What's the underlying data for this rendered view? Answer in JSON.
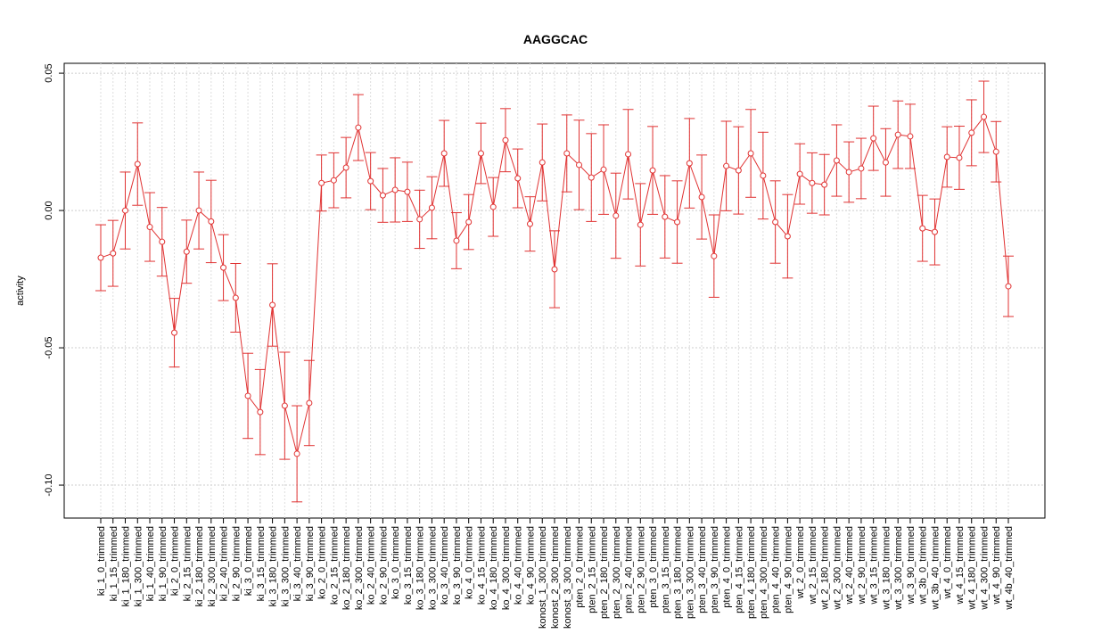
{
  "chart_data": {
    "type": "line",
    "title": "AAGGCAC",
    "y_label": "activity",
    "categories": [
      "ki_1_0_trimmed",
      "ki_1_15_trimmed",
      "ki_1_180_trimmed",
      "ki_1_300_trimmed",
      "ki_1_40_trimmed",
      "ki_1_90_trimmed",
      "ki_2_0_trimmed",
      "ki_2_15_trimmed",
      "ki_2_180_trimmed",
      "ki_2_300_trimmed",
      "ki_2_40_trimmed",
      "ki_2_90_trimmed",
      "ki_3_0_trimmed",
      "ki_3_15_trimmed",
      "ki_3_180_trimmed",
      "ki_3_300_trimmed",
      "ki_3_40_trimmed",
      "ki_3_90_trimmed",
      "ko_2_0_trimmed",
      "ko_2_15_trimmed",
      "ko_2_180_trimmed",
      "ko_2_300_trimmed",
      "ko_2_40_trimmed",
      "ko_2_90_trimmed",
      "ko_3_0_trimmed",
      "ko_3_15_trimmed",
      "ko_3_180_trimmed",
      "ko_3_300_trimmed",
      "ko_3_40_trimmed",
      "ko_3_90_trimmed",
      "ko_4_0_trimmed",
      "ko_4_15_trimmed",
      "ko_4_180_trimmed",
      "ko_4_300_trimmed",
      "ko_4_40_trimmed",
      "ko_4_90_trimmed",
      "konost_1_300_trimmed",
      "konost_2_300_trimmed",
      "konost_3_300_trimmed",
      "pten_2_0_trimmed",
      "pten_2_15_trimmed",
      "pten_2_180_trimmed",
      "pten_2_300_trimmed",
      "pten_2_40_trimmed",
      "pten_2_90_trimmed",
      "pten_3_0_trimmed",
      "pten_3_15_trimmed",
      "pten_3_180_trimmed",
      "pten_3_300_trimmed",
      "pten_3_40_trimmed",
      "pten_3_90_trimmed",
      "pten_4_0_trimmed",
      "pten_4_15_trimmed",
      "pten_4_180_trimmed",
      "pten_4_300_trimmed",
      "pten_4_40_trimmed",
      "pten_4_90_trimmed",
      "wt_2_0_trimmed",
      "wt_2_15_trimmed",
      "wt_2_180_trimmed",
      "wt_2_300_trimmed",
      "wt_2_40_trimmed",
      "wt_2_90_trimmed",
      "wt_3_15_trimmed",
      "wt_3_180_trimmed",
      "wt_3_300_trimmed",
      "wt_3_90_trimmed",
      "wt_3b_0_trimmed",
      "wt_3b_40_trimmed",
      "wt_4_0_trimmed",
      "wt_4_15_trimmed",
      "wt_4_180_trimmed",
      "wt_4_300_trimmed",
      "wt_4_90_trimmed",
      "wt_4b_40_trimmed"
    ],
    "values": [
      -0.0172,
      -0.0156,
      0,
      0.0169,
      -0.006,
      -0.0114,
      -0.0445,
      -0.015,
      0,
      -0.004,
      -0.0208,
      -0.0318,
      -0.0675,
      -0.0734,
      -0.0344,
      -0.0711,
      -0.0886,
      -0.0701,
      0.01,
      0.011,
      0.0156,
      0.0302,
      0.0107,
      0.0055,
      0.0075,
      0.0068,
      -0.0032,
      0.001,
      0.0208,
      -0.011,
      -0.0042,
      0.0208,
      0.0013,
      0.0256,
      0.0117,
      -0.0049,
      0.0175,
      -0.0214,
      0.0208,
      0.0166,
      0.012,
      0.0149,
      -0.0019,
      0.0205,
      -0.0052,
      0.0146,
      -0.0023,
      -0.0042,
      0.0172,
      0.0049,
      -0.0166,
      0.0162,
      0.0146,
      0.0208,
      0.0127,
      -0.0042,
      -0.0094,
      0.0133,
      0.01,
      0.0094,
      0.0182,
      0.014,
      0.0153,
      0.0263,
      0.0175,
      0.0276,
      0.027,
      -0.0065,
      -0.0078,
      0.0195,
      0.0192,
      0.0283,
      0.0341,
      0.0214,
      -0.0276
    ],
    "errors": [
      0.012,
      0.012,
      0.014,
      0.015,
      0.0125,
      0.0125,
      0.0125,
      0.0115,
      0.014,
      0.015,
      0.012,
      0.0125,
      0.0155,
      0.0155,
      0.015,
      0.0195,
      0.0175,
      0.0155,
      0.0102,
      0.01,
      0.011,
      0.012,
      0.0104,
      0.0098,
      0.0117,
      0.0108,
      0.0106,
      0.0113,
      0.012,
      0.0102,
      0.01,
      0.011,
      0.0107,
      0.0115,
      0.0107,
      0.0099,
      0.014,
      0.014,
      0.014,
      0.0163,
      0.016,
      0.0163,
      0.0155,
      0.0163,
      0.015,
      0.016,
      0.015,
      0.015,
      0.0163,
      0.0153,
      0.015,
      0.0163,
      0.0159,
      0.016,
      0.0158,
      0.015,
      0.0152,
      0.011,
      0.011,
      0.011,
      0.013,
      0.011,
      0.011,
      0.0117,
      0.0123,
      0.0123,
      0.0117,
      0.012,
      0.012,
      0.011,
      0.0115,
      0.012,
      0.013,
      0.011,
      0.011
    ],
    "color": "#e03232",
    "ylim": [
      -0.112,
      0.0536
    ],
    "yticks": [
      {
        "value": -0.1,
        "label": "-0.10"
      },
      -0.05,
      {
        "value": 0,
        "label": "0.00"
      },
      0.05
    ],
    "grid": true
  }
}
